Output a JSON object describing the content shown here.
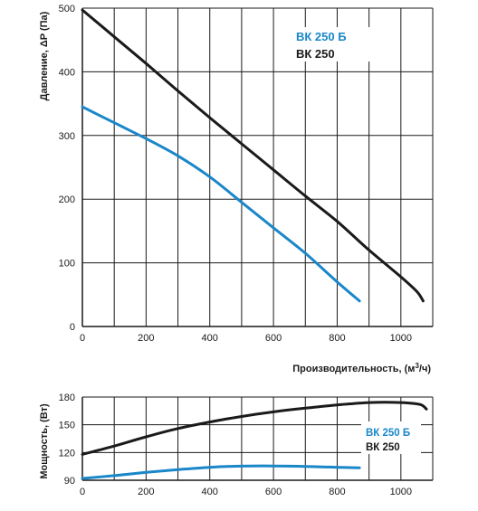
{
  "colors": {
    "bk250b": "#1a87c9",
    "bk250": "#1a1a1a",
    "grid": "#1a1a1a"
  },
  "chart_data": [
    {
      "type": "line",
      "xlabel": "Производительность, (м³/ч)",
      "xlabel_main": "Производительность, (м",
      "xlabel_sup": "3",
      "xlabel_tail": "/ч)",
      "ylabel": "Давление, ΔP (Па)",
      "xlim": [
        0,
        1100
      ],
      "ylim": [
        0,
        500
      ],
      "x_ticks": [
        "0",
        "200",
        "400",
        "600",
        "800",
        "1000"
      ],
      "y_ticks": [
        "0",
        "100",
        "200",
        "300",
        "400",
        "500"
      ],
      "grid": true,
      "legend_placement": "top-right",
      "series": [
        {
          "name": "ВК 250 Б",
          "color": "#1a87c9",
          "points": [
            [
              0,
              345
            ],
            [
              100,
              320
            ],
            [
              200,
              295
            ],
            [
              300,
              268
            ],
            [
              400,
              235
            ],
            [
              500,
              195
            ],
            [
              600,
              155
            ],
            [
              700,
              115
            ],
            [
              800,
              70
            ],
            [
              870,
              40
            ]
          ]
        },
        {
          "name": "ВК 250",
          "color": "#1a1a1a",
          "points": [
            [
              0,
              497
            ],
            [
              100,
              455
            ],
            [
              200,
              413
            ],
            [
              300,
              370
            ],
            [
              400,
              328
            ],
            [
              500,
              287
            ],
            [
              600,
              246
            ],
            [
              700,
              205
            ],
            [
              800,
              165
            ],
            [
              900,
              120
            ],
            [
              1000,
              78
            ],
            [
              1050,
              55
            ],
            [
              1070,
              40
            ]
          ]
        }
      ]
    },
    {
      "type": "line",
      "xlabel": "",
      "ylabel": "Мощность, (Вт)",
      "xlim": [
        0,
        1100
      ],
      "ylim": [
        90,
        180
      ],
      "x_ticks": [
        "0",
        "200",
        "400",
        "600",
        "800",
        "1000"
      ],
      "y_ticks": [
        "90",
        "120",
        "150",
        "180"
      ],
      "grid": true,
      "legend_placement": "right",
      "series": [
        {
          "name": "ВК 250 Б",
          "color": "#1a87c9",
          "points": [
            [
              0,
              92
            ],
            [
              100,
              95
            ],
            [
              200,
              98.5
            ],
            [
              300,
              101.5
            ],
            [
              400,
              104
            ],
            [
              500,
              105.3
            ],
            [
              600,
              105.5
            ],
            [
              700,
              105
            ],
            [
              800,
              104
            ],
            [
              870,
              103.5
            ]
          ]
        },
        {
          "name": "ВК 250",
          "color": "#1a1a1a",
          "points": [
            [
              0,
              118
            ],
            [
              100,
              127
            ],
            [
              200,
              137
            ],
            [
              300,
              146
            ],
            [
              400,
              153
            ],
            [
              500,
              159
            ],
            [
              600,
              164
            ],
            [
              700,
              168
            ],
            [
              800,
              171.5
            ],
            [
              900,
              174
            ],
            [
              1000,
              174
            ],
            [
              1060,
              172
            ],
            [
              1080,
              167
            ]
          ]
        }
      ]
    }
  ]
}
